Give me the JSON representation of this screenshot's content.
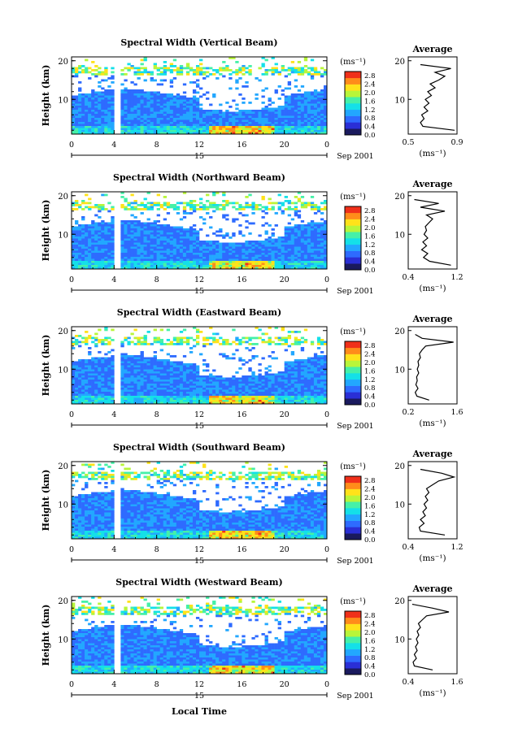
{
  "figure": {
    "xlabel": "Local Time",
    "date_label": "Sep 2001",
    "day_label": "15",
    "unit_label": "(ms⁻¹)",
    "avg_title": "Average",
    "avg_xlabel": "(ms⁻¹)",
    "ylabel": "Height (km)",
    "colorbar_ticks": [
      "2.8",
      "2.4",
      "2.0",
      "1.6",
      "1.2",
      "0.8",
      "0.4",
      "0.0"
    ],
    "colormap": [
      "#1a1a5e",
      "#2a2fd6",
      "#2e6bff",
      "#22a7ff",
      "#14e0e8",
      "#45f0a8",
      "#b8f53a",
      "#ffe21a",
      "#ff8c1a",
      "#f0301a"
    ]
  },
  "chart_data": [
    {
      "type": "heatmap",
      "title": "Spectral Width (Vertical Beam)",
      "x_ticks": [
        "0",
        "4",
        "8",
        "12",
        "16",
        "20",
        "0"
      ],
      "xlim": [
        0,
        24
      ],
      "y_ticks": [
        "20",
        "10"
      ],
      "ylim": [
        1,
        21
      ],
      "color_range": [
        0.0,
        3.0
      ],
      "avg_profile": {
        "xlim": [
          0.5,
          0.9
        ],
        "x_ticks": [
          "0.5",
          "0.9"
        ],
        "height": [
          2,
          3,
          4,
          5,
          6,
          7,
          8,
          9,
          10,
          11,
          12,
          13,
          14,
          15,
          16,
          17,
          18,
          19
        ],
        "value": [
          0.88,
          0.62,
          0.6,
          0.63,
          0.61,
          0.66,
          0.63,
          0.67,
          0.64,
          0.69,
          0.66,
          0.72,
          0.68,
          0.75,
          0.8,
          0.72,
          0.85,
          0.6
        ]
      }
    },
    {
      "type": "heatmap",
      "title": "Spectral Width (Northward Beam)",
      "x_ticks": [
        "0",
        "4",
        "8",
        "12",
        "16",
        "20",
        "0"
      ],
      "xlim": [
        0,
        24
      ],
      "y_ticks": [
        "20",
        "10"
      ],
      "ylim": [
        1,
        21
      ],
      "color_range": [
        0.0,
        3.0
      ],
      "avg_profile": {
        "xlim": [
          0.4,
          1.2
        ],
        "x_ticks": [
          "0.4",
          "1.2"
        ],
        "height": [
          2,
          3,
          4,
          5,
          6,
          7,
          8,
          9,
          10,
          11,
          12,
          13,
          14,
          15,
          16,
          17,
          18,
          19
        ],
        "value": [
          1.1,
          0.75,
          0.65,
          0.72,
          0.62,
          0.7,
          0.64,
          0.72,
          0.66,
          0.7,
          0.68,
          0.74,
          0.8,
          0.7,
          1.0,
          0.6,
          0.9,
          0.5
        ]
      }
    },
    {
      "type": "heatmap",
      "title": "Spectral Width (Eastward Beam)",
      "x_ticks": [
        "0",
        "4",
        "8",
        "12",
        "16",
        "20",
        "0"
      ],
      "xlim": [
        0,
        24
      ],
      "y_ticks": [
        "20",
        "10"
      ],
      "ylim": [
        1,
        21
      ],
      "color_range": [
        0.0,
        3.0
      ],
      "avg_profile": {
        "xlim": [
          0.2,
          1.6
        ],
        "x_ticks": [
          "0.2",
          "1.6"
        ],
        "height": [
          2,
          3,
          4,
          5,
          6,
          7,
          8,
          9,
          10,
          11,
          12,
          13,
          14,
          15,
          16,
          17,
          18,
          19
        ],
        "value": [
          0.8,
          0.45,
          0.4,
          0.48,
          0.42,
          0.46,
          0.44,
          0.5,
          0.46,
          0.5,
          0.48,
          0.55,
          0.52,
          0.6,
          0.7,
          1.5,
          0.6,
          0.4
        ]
      }
    },
    {
      "type": "heatmap",
      "title": "Spectral Width (Southward Beam)",
      "x_ticks": [
        "0",
        "4",
        "8",
        "12",
        "16",
        "20",
        "0"
      ],
      "xlim": [
        0,
        24
      ],
      "y_ticks": [
        "20",
        "10"
      ],
      "ylim": [
        1,
        21
      ],
      "color_range": [
        0.0,
        3.0
      ],
      "avg_profile": {
        "xlim": [
          0.4,
          1.2
        ],
        "x_ticks": [
          "0.4",
          "1.2"
        ],
        "height": [
          2,
          3,
          4,
          5,
          6,
          7,
          8,
          9,
          10,
          11,
          12,
          13,
          14,
          15,
          16,
          17,
          18,
          19
        ],
        "value": [
          1.0,
          0.6,
          0.58,
          0.66,
          0.6,
          0.68,
          0.64,
          0.7,
          0.66,
          0.72,
          0.68,
          0.74,
          0.7,
          0.8,
          0.9,
          1.15,
          0.95,
          0.6
        ]
      }
    },
    {
      "type": "heatmap",
      "title": "Spectral Width (Westward Beam)",
      "x_ticks": [
        "0",
        "4",
        "8",
        "12",
        "16",
        "20",
        "0"
      ],
      "xlim": [
        0,
        24
      ],
      "y_ticks": [
        "20",
        "10"
      ],
      "ylim": [
        1,
        21
      ],
      "color_range": [
        0.0,
        3.0
      ],
      "avg_profile": {
        "xlim": [
          0.4,
          1.6
        ],
        "x_ticks": [
          "0.4",
          "1.6"
        ],
        "height": [
          2,
          3,
          4,
          5,
          6,
          7,
          8,
          9,
          10,
          11,
          12,
          13,
          14,
          15,
          16,
          17,
          18,
          19
        ],
        "value": [
          1.0,
          0.55,
          0.52,
          0.6,
          0.55,
          0.62,
          0.58,
          0.64,
          0.6,
          0.66,
          0.62,
          0.7,
          0.65,
          0.75,
          0.85,
          1.4,
          1.0,
          0.5
        ]
      }
    }
  ]
}
